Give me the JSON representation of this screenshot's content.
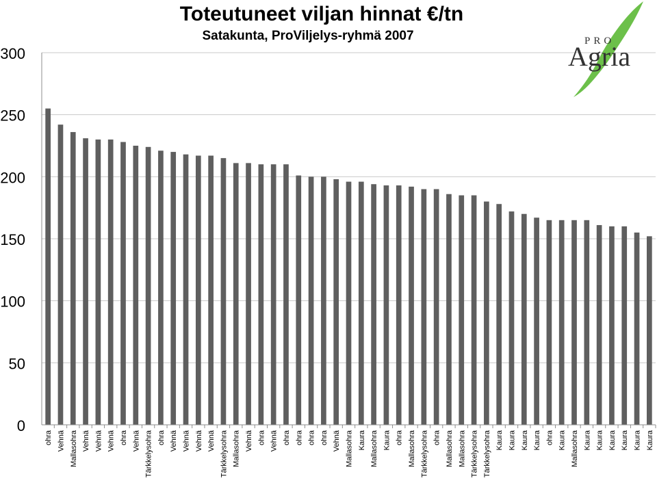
{
  "logo": {
    "pro_text": "PRO",
    "brand_text": "Agria",
    "leaf_color": "#6cc04a"
  },
  "chart_data": {
    "type": "bar",
    "title": "Toteutuneet viljan hinnat €/tn",
    "subtitle": "Satakunta, ProViljelys-ryhmä 2007",
    "xlabel": "",
    "ylabel": "",
    "ylim": [
      0,
      300
    ],
    "yticks": [
      0,
      50,
      100,
      150,
      200,
      250,
      300
    ],
    "grid": true,
    "legend": "none",
    "bar_color": "#5f5f5f",
    "categories": [
      "ohra",
      "Vehnä",
      "Mallasohra",
      "Vehnä",
      "Vehnä",
      "Vehnä",
      "ohra",
      "Vehnä",
      "Tärkkelysohra",
      "ohra",
      "Vehnä",
      "Vehnä",
      "Vehnä",
      "Vehnä",
      "Tärkkelysohra",
      "Mallasohra",
      "Vehnä",
      "ohra",
      "Vehnä",
      "ohra",
      "ohra",
      "ohra",
      "ohra",
      "Vehnä",
      "Mallasohra",
      "Kaura",
      "Mallasohra",
      "Kaura",
      "ohra",
      "Mallasohra",
      "Tärkkelysohra",
      "ohra",
      "Mallasohra",
      "Mallasohra",
      "Tärkkelysohra",
      "Tärkkelysohra",
      "Kaura",
      "Kaura",
      "Kaura",
      "Kaura",
      "ohra",
      "Kaura",
      "Mallasohra",
      "Kaura",
      "Kaura",
      "Kaura",
      "Kaura",
      "Kaura",
      "Kaura"
    ],
    "values": [
      255,
      242,
      236,
      231,
      230,
      230,
      228,
      225,
      224,
      221,
      220,
      218,
      217,
      217,
      215,
      211,
      211,
      210,
      210,
      210,
      201,
      200,
      200,
      198,
      196,
      196,
      194,
      193,
      193,
      192,
      190,
      190,
      186,
      185,
      185,
      180,
      178,
      172,
      170,
      167,
      165,
      165,
      165,
      165,
      161,
      160,
      160,
      155,
      152
    ]
  }
}
